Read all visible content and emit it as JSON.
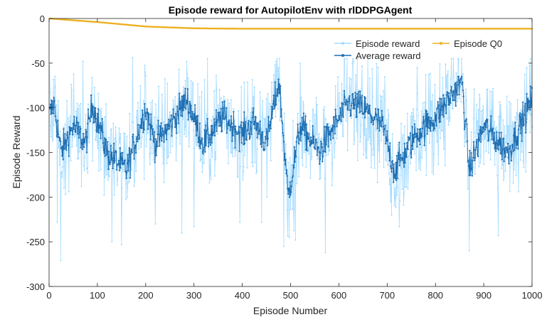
{
  "chart_data": {
    "type": "line",
    "title": "Episode reward for AutopilotEnv with rlDDPGAgent",
    "xlabel": "Episode Number",
    "ylabel": "Episode Reward",
    "xlim": [
      0,
      1000
    ],
    "ylim": [
      -300,
      0
    ],
    "xticks": [
      0,
      100,
      200,
      300,
      400,
      500,
      600,
      700,
      800,
      900,
      1000
    ],
    "yticks": [
      0,
      -50,
      -100,
      -150,
      -200,
      -250,
      -300
    ],
    "grid": false,
    "legend_position": "top-right",
    "num_episodes": 1000,
    "series": [
      {
        "name": "Episode reward",
        "color": "#a6dcff",
        "marker": "dot",
        "approx_mean": -128,
        "approx_range": [
          -271,
          -43
        ],
        "notable_points": [
          {
            "x": 17,
            "y": -228
          },
          {
            "x": 24,
            "y": -271
          },
          {
            "x": 70,
            "y": -48
          },
          {
            "x": 130,
            "y": -250
          },
          {
            "x": 150,
            "y": -253
          },
          {
            "x": 173,
            "y": -44
          },
          {
            "x": 220,
            "y": -230
          },
          {
            "x": 275,
            "y": -240
          },
          {
            "x": 300,
            "y": -233
          },
          {
            "x": 395,
            "y": -228
          },
          {
            "x": 440,
            "y": -228
          },
          {
            "x": 470,
            "y": -48
          },
          {
            "x": 486,
            "y": -255
          },
          {
            "x": 510,
            "y": -248
          },
          {
            "x": 572,
            "y": -262
          },
          {
            "x": 630,
            "y": -48
          },
          {
            "x": 660,
            "y": -44
          },
          {
            "x": 725,
            "y": -233
          },
          {
            "x": 762,
            "y": -55
          },
          {
            "x": 870,
            "y": -260
          },
          {
            "x": 930,
            "y": -243
          },
          {
            "x": 995,
            "y": -53
          }
        ]
      },
      {
        "name": "Average reward",
        "color": "#1f6fb2",
        "marker": "dot",
        "approx_range": [
          -200,
          -65
        ],
        "keypoints": [
          {
            "x": 0,
            "y": -110
          },
          {
            "x": 10,
            "y": -95
          },
          {
            "x": 25,
            "y": -150
          },
          {
            "x": 50,
            "y": -120
          },
          {
            "x": 75,
            "y": -140
          },
          {
            "x": 90,
            "y": -95
          },
          {
            "x": 120,
            "y": -150
          },
          {
            "x": 160,
            "y": -170
          },
          {
            "x": 200,
            "y": -100
          },
          {
            "x": 220,
            "y": -140
          },
          {
            "x": 250,
            "y": -120
          },
          {
            "x": 285,
            "y": -90
          },
          {
            "x": 320,
            "y": -140
          },
          {
            "x": 360,
            "y": -110
          },
          {
            "x": 400,
            "y": -130
          },
          {
            "x": 425,
            "y": -115
          },
          {
            "x": 450,
            "y": -140
          },
          {
            "x": 476,
            "y": -70
          },
          {
            "x": 495,
            "y": -200
          },
          {
            "x": 520,
            "y": -120
          },
          {
            "x": 560,
            "y": -150
          },
          {
            "x": 580,
            "y": -130
          },
          {
            "x": 620,
            "y": -95
          },
          {
            "x": 650,
            "y": -100
          },
          {
            "x": 690,
            "y": -120
          },
          {
            "x": 715,
            "y": -170
          },
          {
            "x": 760,
            "y": -130
          },
          {
            "x": 800,
            "y": -110
          },
          {
            "x": 855,
            "y": -70
          },
          {
            "x": 870,
            "y": -170
          },
          {
            "x": 900,
            "y": -120
          },
          {
            "x": 950,
            "y": -150
          },
          {
            "x": 1000,
            "y": -90
          }
        ]
      },
      {
        "name": "Episode Q0",
        "color": "#edb120",
        "marker": "dot",
        "keypoints": [
          {
            "x": 0,
            "y": 0
          },
          {
            "x": 100,
            "y": -4
          },
          {
            "x": 200,
            "y": -9
          },
          {
            "x": 300,
            "y": -11
          },
          {
            "x": 400,
            "y": -11.5
          },
          {
            "x": 1000,
            "y": -11.5
          }
        ]
      }
    ]
  }
}
